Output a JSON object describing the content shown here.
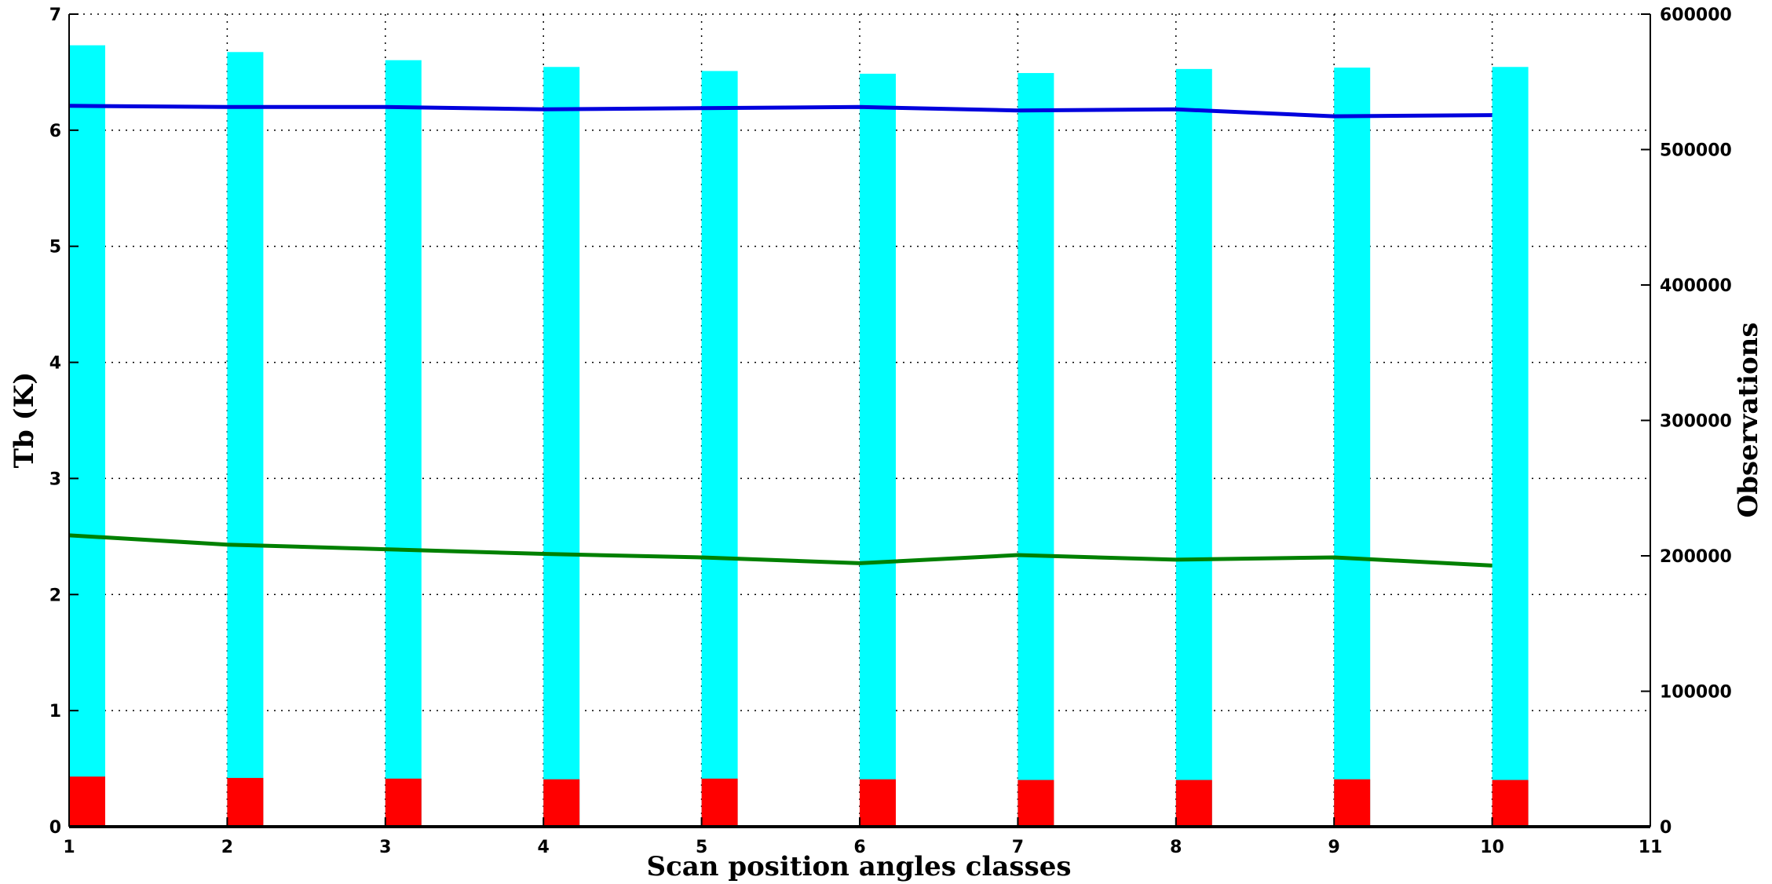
{
  "chart_data": {
    "type": "bar",
    "xlabel": "Scan position angles classes",
    "ylabel": "Tb (K)",
    "y2label": "Observations",
    "x_ticks": [
      "1",
      "2",
      "3",
      "4",
      "5",
      "6",
      "7",
      "8",
      "9",
      "10",
      "11"
    ],
    "y_ticks": [
      "0",
      "1",
      "2",
      "3",
      "4",
      "5",
      "6",
      "7"
    ],
    "y2_ticks": [
      "0",
      "100000",
      "200000",
      "300000",
      "400000",
      "500000",
      "600000"
    ],
    "xlim": [
      1,
      11
    ],
    "ylim": [
      0,
      7
    ],
    "y2lim": [
      0,
      600000
    ],
    "grid": true,
    "bar_series": [
      {
        "axis": "right",
        "color": "#00ffff",
        "x": [
          1,
          2,
          3,
          4,
          5,
          6,
          7,
          8,
          9,
          10
        ],
        "values": [
          577000,
          572000,
          566000,
          561000,
          558000,
          556000,
          556500,
          559500,
          560500,
          561000
        ]
      },
      {
        "axis": "right",
        "color": "#ff0000",
        "x": [
          1,
          2,
          3,
          4,
          5,
          6,
          7,
          8,
          9,
          10
        ],
        "values": [
          37000,
          36000,
          35500,
          35000,
          35500,
          35000,
          34500,
          34500,
          35000,
          34500
        ]
      }
    ],
    "line_series": [
      {
        "axis": "left",
        "color": "#0000dd",
        "x": [
          1,
          2,
          3,
          4,
          5,
          6,
          7,
          8,
          9,
          10
        ],
        "values": [
          6.21,
          6.2,
          6.2,
          6.18,
          6.19,
          6.2,
          6.17,
          6.18,
          6.12,
          6.13
        ]
      },
      {
        "axis": "left",
        "color": "#008000",
        "x": [
          1,
          2,
          3,
          4,
          5,
          6,
          7,
          8,
          9,
          10
        ],
        "values": [
          2.51,
          2.43,
          2.39,
          2.35,
          2.32,
          2.27,
          2.34,
          2.3,
          2.32,
          2.25
        ]
      }
    ]
  }
}
